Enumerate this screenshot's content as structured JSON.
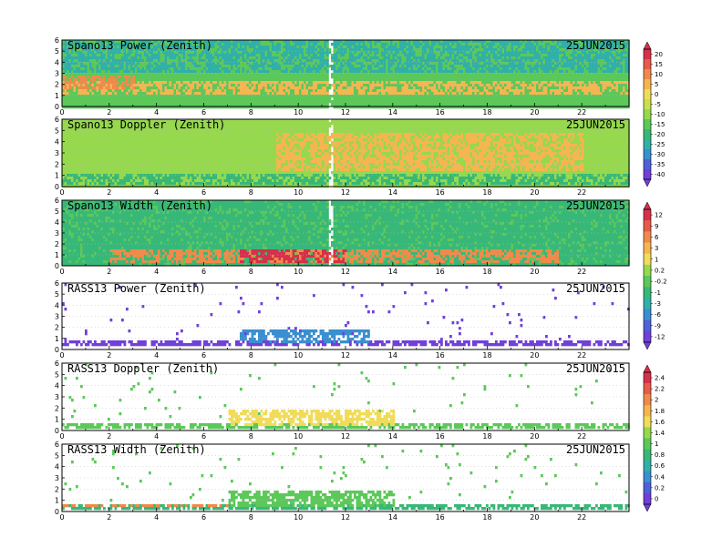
{
  "chart_data": [
    {
      "type": "heatmap",
      "title": "Spano13 Power (Zenith)",
      "date": "25JUN2015",
      "xlim": [
        0,
        24
      ],
      "ylim": [
        0,
        6
      ],
      "xticks": [
        0,
        2,
        4,
        6,
        8,
        10,
        12,
        14,
        16,
        18,
        20,
        22
      ],
      "yticks": [
        0,
        1,
        2,
        3,
        4,
        5,
        6
      ],
      "colorbar": [
        20,
        15,
        10,
        5,
        0,
        -5,
        -10,
        -15,
        -20,
        -25,
        -30,
        -35,
        -40
      ],
      "dominant_value": -15,
      "features": [
        {
          "name": "enhanced layer",
          "x": [
            0,
            24
          ],
          "y": [
            1.2,
            2.5
          ],
          "value": 5
        },
        {
          "name": "peak layer",
          "x": [
            0,
            3
          ],
          "y": [
            1.7,
            2.8
          ],
          "value": 10
        },
        {
          "name": "weak upper returns",
          "x": [
            0,
            24
          ],
          "y": [
            3.2,
            6
          ],
          "value": -25
        },
        {
          "name": "data gap",
          "x": [
            11.2,
            11.4
          ],
          "y": [
            0,
            6
          ]
        }
      ]
    },
    {
      "type": "heatmap",
      "title": "Spano13 Doppler (Zenith)",
      "date": "25JUN2015",
      "xlim": [
        0,
        24
      ],
      "ylim": [
        0,
        6
      ],
      "xticks": [
        0,
        2,
        4,
        6,
        8,
        10,
        12,
        14,
        16,
        18,
        20,
        22
      ],
      "yticks": [
        0,
        1,
        2,
        3,
        4,
        5,
        6
      ],
      "colorbar": [
        20,
        15,
        10,
        5,
        0,
        -5,
        -10,
        -15,
        -20,
        -25,
        -30,
        -35,
        -40
      ],
      "dominant_value": -10,
      "features": [
        {
          "name": "weaker lower layer",
          "x": [
            0,
            24
          ],
          "y": [
            0.3,
            1.3
          ],
          "value": -20
        },
        {
          "name": "yellow streaks",
          "x": [
            9,
            22
          ],
          "y": [
            1.5,
            5
          ],
          "value": 5
        },
        {
          "name": "data gap",
          "x": [
            11.2,
            11.4
          ],
          "y": [
            0,
            6
          ]
        }
      ]
    },
    {
      "type": "heatmap",
      "title": "Spano13 Width (Zenith)",
      "date": "25JUN2015",
      "xlim": [
        0,
        24
      ],
      "ylim": [
        0,
        6
      ],
      "xticks": [
        0,
        2,
        4,
        6,
        8,
        10,
        12,
        14,
        16,
        18,
        20,
        22
      ],
      "yticks": [
        0,
        1,
        2,
        3,
        4,
        5,
        6
      ],
      "colorbar": [
        12,
        9,
        6,
        3,
        1,
        0.2,
        -0.2,
        -1,
        -3,
        -6,
        -9,
        -12
      ],
      "dominant_value": -1,
      "features": [
        {
          "name": "high-width layer",
          "x": [
            2,
            21
          ],
          "y": [
            0.4,
            1.5
          ],
          "value": 6
        },
        {
          "name": "peak width",
          "x": [
            7.5,
            12
          ],
          "y": [
            0.5,
            1.7
          ],
          "value": 12
        },
        {
          "name": "data gap",
          "x": [
            11.2,
            11.4
          ],
          "y": [
            0,
            6
          ]
        }
      ]
    },
    {
      "type": "heatmap",
      "title": "RASS13 Power (Zenith)",
      "date": "25JUN2015",
      "xlim": [
        0,
        24
      ],
      "ylim": [
        0,
        6
      ],
      "xticks": [
        0,
        2,
        4,
        6,
        8,
        10,
        12,
        14,
        16,
        18,
        20,
        22
      ],
      "yticks": [
        0,
        1,
        2,
        3,
        4,
        5,
        6
      ],
      "colorbar": [
        12,
        9,
        6,
        3,
        1,
        0.2,
        -0.2,
        -1,
        -3,
        -6,
        -9,
        -12
      ],
      "dominant_value": -12,
      "features": [
        {
          "name": "RASS band",
          "x": [
            0,
            24
          ],
          "y": [
            0.4,
            0.9
          ],
          "value": -12
        },
        {
          "name": "enhanced region",
          "x": [
            7.5,
            13
          ],
          "y": [
            0.6,
            2
          ],
          "value": -6
        },
        {
          "name": "sparse returns",
          "x": [
            0,
            24
          ],
          "y": [
            1,
            6
          ],
          "value": -12
        }
      ]
    },
    {
      "type": "heatmap",
      "title": "RASS13 Doppler (Zenith)",
      "date": "25JUN2015",
      "xlim": [
        0,
        24
      ],
      "ylim": [
        0,
        6
      ],
      "xticks": [
        0,
        2,
        4,
        6,
        8,
        10,
        12,
        14,
        16,
        18,
        20,
        22
      ],
      "yticks": [
        0,
        1,
        2,
        3,
        4,
        5,
        6
      ],
      "colorbar": [
        2.4,
        2.2,
        2,
        1.8,
        1.6,
        1.4,
        1,
        0.8,
        0.6,
        0.4,
        0.2,
        0
      ],
      "dominant_value": 1,
      "features": [
        {
          "name": "RASS band",
          "x": [
            0,
            24
          ],
          "y": [
            0.4,
            0.8
          ],
          "value": 1
        },
        {
          "name": "enhanced region",
          "x": [
            7,
            14
          ],
          "y": [
            0.6,
            2
          ],
          "value": 1.6
        },
        {
          "name": "sparse returns",
          "x": [
            0,
            24
          ],
          "y": [
            1,
            6
          ],
          "value": 1
        }
      ]
    },
    {
      "type": "heatmap",
      "title": "RASS13 Width (Zenith)",
      "date": "25JUN2015",
      "xlim": [
        0,
        24
      ],
      "ylim": [
        0,
        6
      ],
      "xticks": [
        0,
        2,
        4,
        6,
        8,
        10,
        12,
        14,
        16,
        18,
        20,
        22
      ],
      "yticks": [
        0,
        1,
        2,
        3,
        4,
        5,
        6
      ],
      "colorbar": [
        2.4,
        2.2,
        2,
        1.8,
        1.6,
        1.4,
        1,
        0.8,
        0.6,
        0.4,
        0.2,
        0
      ],
      "dominant_value": 0.8,
      "features": [
        {
          "name": "RASS band",
          "x": [
            0,
            24
          ],
          "y": [
            0.4,
            0.8
          ],
          "value": 0.8
        },
        {
          "name": "broad band early",
          "x": [
            0,
            7
          ],
          "y": [
            0.5,
            0.7
          ],
          "value": 2
        },
        {
          "name": "enhanced region",
          "x": [
            7,
            14
          ],
          "y": [
            0.6,
            2
          ],
          "value": 1
        },
        {
          "name": "sparse returns",
          "x": [
            0,
            24
          ],
          "y": [
            1,
            6
          ],
          "value": 1
        }
      ]
    }
  ]
}
